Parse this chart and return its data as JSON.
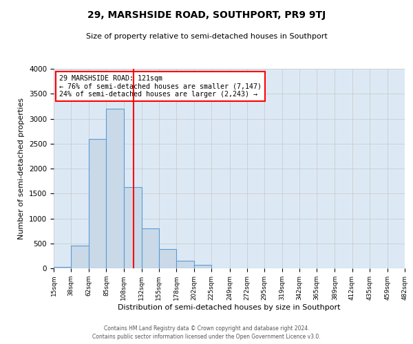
{
  "title": "29, MARSHSIDE ROAD, SOUTHPORT, PR9 9TJ",
  "subtitle": "Size of property relative to semi-detached houses in Southport",
  "xlabel": "Distribution of semi-detached houses by size in Southport",
  "ylabel": "Number of semi-detached properties",
  "footer_line1": "Contains HM Land Registry data © Crown copyright and database right 2024.",
  "footer_line2": "Contains public sector information licensed under the Open Government Licence v3.0.",
  "bin_labels": [
    "15sqm",
    "38sqm",
    "62sqm",
    "85sqm",
    "108sqm",
    "132sqm",
    "155sqm",
    "178sqm",
    "202sqm",
    "225sqm",
    "249sqm",
    "272sqm",
    "295sqm",
    "319sqm",
    "342sqm",
    "365sqm",
    "389sqm",
    "412sqm",
    "435sqm",
    "459sqm",
    "482sqm"
  ],
  "bin_edges": [
    15,
    38,
    62,
    85,
    108,
    132,
    155,
    178,
    202,
    225,
    249,
    272,
    295,
    319,
    342,
    365,
    389,
    412,
    435,
    459,
    482
  ],
  "bar_heights": [
    30,
    460,
    2600,
    3200,
    1630,
    800,
    380,
    155,
    70,
    5,
    5,
    5,
    0,
    0,
    5,
    0,
    5,
    0,
    0,
    0
  ],
  "bar_color": "#c9d9e8",
  "bar_edge_color": "#5b9bd5",
  "property_size": 121,
  "vline_color": "red",
  "annotation_line1": "29 MARSHSIDE ROAD: 121sqm",
  "annotation_line2": "← 76% of semi-detached houses are smaller (7,147)",
  "annotation_line3": "24% of semi-detached houses are larger (2,243) →",
  "annotation_box_color": "white",
  "annotation_box_edge_color": "red",
  "ylim": [
    0,
    4000
  ],
  "yticks": [
    0,
    500,
    1000,
    1500,
    2000,
    2500,
    3000,
    3500,
    4000
  ],
  "grid_color": "#cccccc",
  "plot_bg_color": "#dce9f5"
}
